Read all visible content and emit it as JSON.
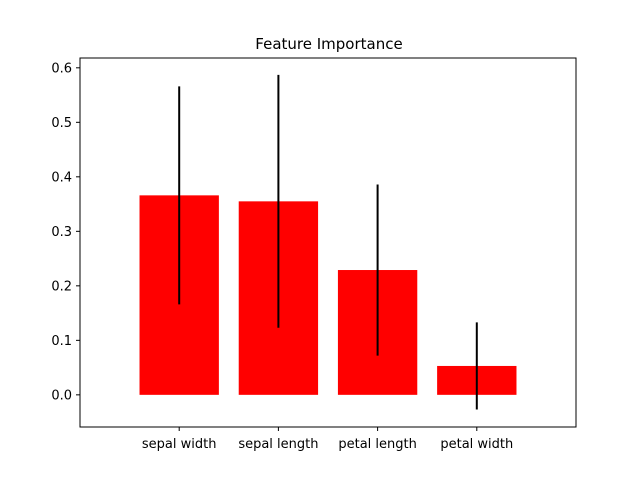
{
  "chart_data": {
    "type": "bar",
    "title": "Feature Importance",
    "xlabel": "",
    "ylabel": "",
    "categories": [
      "sepal width",
      "sepal length",
      "petal length",
      "petal width"
    ],
    "values": [
      0.366,
      0.355,
      0.229,
      0.053
    ],
    "error": [
      0.2,
      0.232,
      0.157,
      0.08
    ],
    "ylim": [
      -0.059,
      0.618
    ],
    "yticks": [
      0.0,
      0.1,
      0.2,
      0.3,
      0.4,
      0.5,
      0.6
    ],
    "ytick_labels": [
      "0.0",
      "0.1",
      "0.2",
      "0.3",
      "0.4",
      "0.5",
      "0.6"
    ],
    "xlim": [
      -1.0,
      4.0
    ],
    "grid": false,
    "bar_color": "#ff0000",
    "error_color": "#000000"
  }
}
